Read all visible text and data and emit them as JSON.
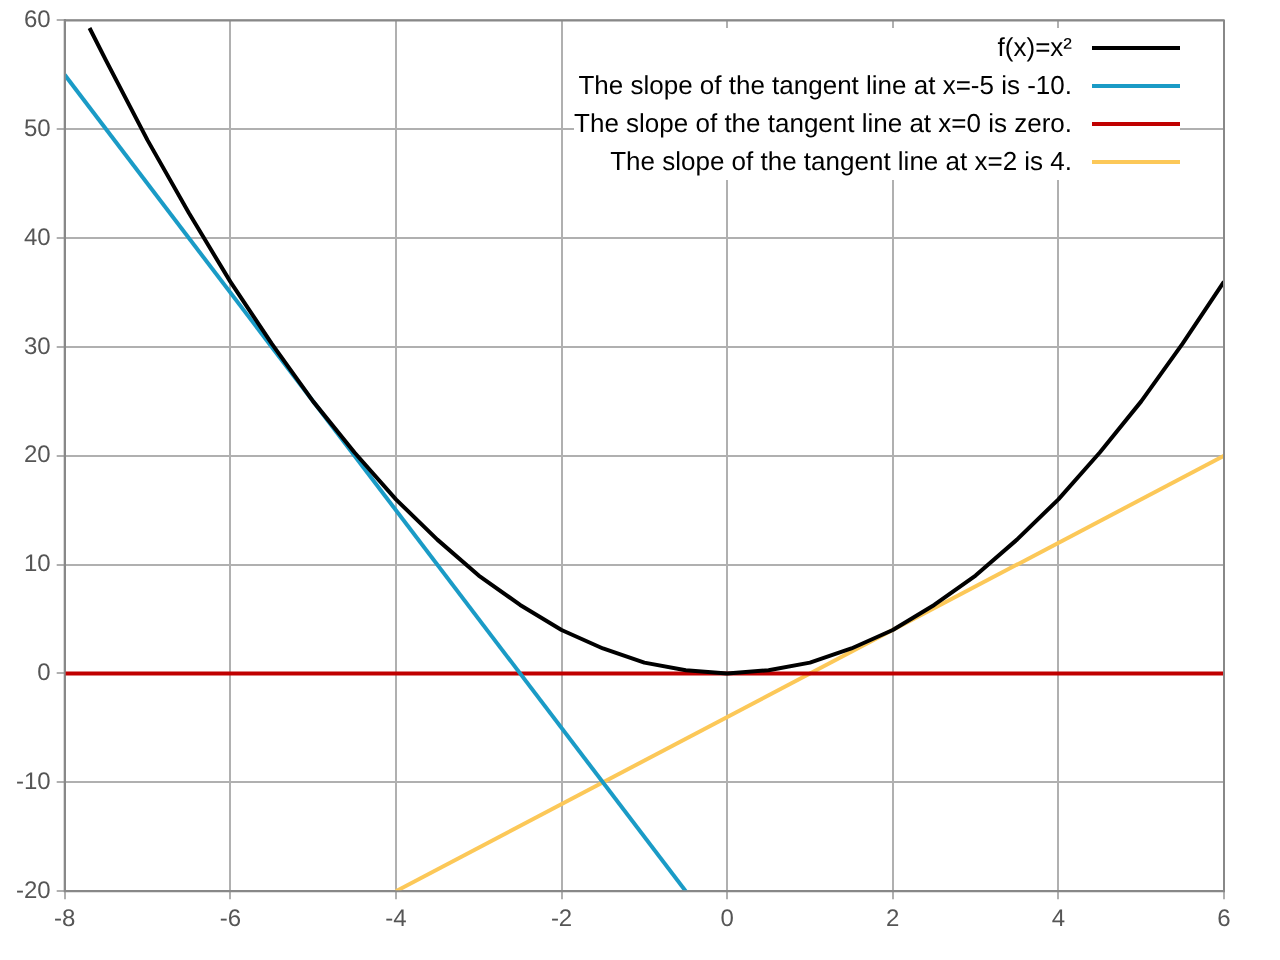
{
  "chart_data": {
    "type": "line",
    "xlim": [
      -8,
      6
    ],
    "ylim": [
      -20,
      60
    ],
    "xticks": [
      -8,
      -6,
      -4,
      -2,
      0,
      2,
      4,
      6
    ],
    "yticks": [
      -20,
      -10,
      0,
      10,
      20,
      30,
      40,
      50,
      60
    ],
    "grid": true,
    "legend": "top right",
    "marker": "none",
    "line_style": "solid",
    "series": [
      {
        "name": "f(x)=x²",
        "color": "#000000",
        "x": [
          -7.7,
          -7.5,
          -7,
          -6.5,
          -6,
          -5.5,
          -5,
          -4.5,
          -4,
          -3.5,
          -3,
          -2.5,
          -2,
          -1.5,
          -1,
          -0.5,
          0,
          0.5,
          1,
          1.5,
          2,
          2.5,
          3,
          3.5,
          4,
          4.5,
          5,
          5.5,
          6
        ],
        "values": [
          59.3,
          56.3,
          49,
          42.3,
          36,
          30.3,
          25,
          20.3,
          16,
          12.3,
          9,
          6.3,
          4,
          2.3,
          1,
          0.3,
          0,
          0.3,
          1,
          2.3,
          4,
          6.3,
          9,
          12.3,
          16,
          20.3,
          25,
          30.3,
          36
        ]
      },
      {
        "name": "The slope of the tangent line at x=-5 is -10.",
        "color": "#1a9bc6",
        "x": [
          -8,
          -0.5
        ],
        "values": [
          55,
          -20
        ]
      },
      {
        "name": "The slope of the tangent line at x=0 is zero.",
        "color": "#c00000",
        "x": [
          -8,
          6
        ],
        "values": [
          0,
          0
        ]
      },
      {
        "name": "The slope of the tangent line at x=2 is 4.",
        "color": "#fcc858",
        "x": [
          -4,
          6
        ],
        "values": [
          -20,
          20
        ]
      }
    ]
  }
}
